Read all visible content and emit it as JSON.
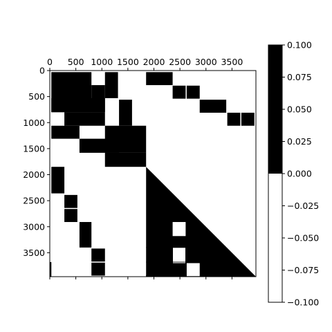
{
  "chart_data": {
    "type": "heatmap",
    "title": "",
    "xlabel": "",
    "ylabel": "",
    "xlim": [
      0,
      3960
    ],
    "ylim": [
      3960,
      0
    ],
    "x_axis_position": "top",
    "grid": false,
    "x_ticks": [
      0,
      500,
      1000,
      1500,
      2000,
      2500,
      3000,
      3500
    ],
    "y_ticks": [
      0,
      500,
      1000,
      1500,
      2000,
      2500,
      3000,
      3500
    ],
    "x_tick_labels": [
      "0",
      "500",
      "1000",
      "1500",
      "2000",
      "2500",
      "3000",
      "3500"
    ],
    "y_tick_labels": [
      "0",
      "500",
      "1000",
      "1500",
      "2000",
      "2500",
      "3000",
      "3500"
    ],
    "color_low": "#ffffff",
    "color_high": "#000000",
    "colorbar": {
      "range": [
        -0.1,
        0.1
      ],
      "threshold": 0.0,
      "ticks": [
        0.1,
        0.075,
        0.05,
        0.025,
        0.0,
        -0.025,
        -0.05,
        -0.075,
        -0.1
      ],
      "tick_labels": [
        "0.100",
        "0.075",
        "0.050",
        "0.025",
        "0.000",
        "−0.025",
        "−0.050",
        "−0.075",
        "−0.100"
      ]
    },
    "nonzero_blocks": [
      {
        "x": [
          30,
          800
        ],
        "y": [
          30,
          800
        ]
      },
      {
        "x": [
          1060,
          1310
        ],
        "y": [
          30,
          530
        ]
      },
      {
        "x": [
          1850,
          2360
        ],
        "y": [
          30,
          280
        ]
      },
      {
        "x": [
          800,
          1060
        ],
        "y": [
          280,
          800
        ]
      },
      {
        "x": [
          30,
          1060
        ],
        "y": [
          530,
          800
        ]
      },
      {
        "x": [
          2360,
          2610
        ],
        "y": [
          290,
          540
        ]
      },
      {
        "x": [
          2630,
          2880
        ],
        "y": [
          290,
          540
        ]
      },
      {
        "x": [
          280,
          1060
        ],
        "y": [
          800,
          1060
        ]
      },
      {
        "x": [
          1330,
          1580
        ],
        "y": [
          560,
          1060
        ]
      },
      {
        "x": [
          2880,
          3390
        ],
        "y": [
          560,
          810
        ]
      },
      {
        "x": [
          3410,
          3660
        ],
        "y": [
          810,
          1060
        ]
      },
      {
        "x": [
          3680,
          3930
        ],
        "y": [
          810,
          1060
        ]
      },
      {
        "x": [
          30,
          570
        ],
        "y": [
          1060,
          1310
        ]
      },
      {
        "x": [
          1060,
          1850
        ],
        "y": [
          1060,
          1580
        ]
      },
      {
        "x": [
          570,
          1330
        ],
        "y": [
          1310,
          1580
        ]
      },
      {
        "x": [
          1060,
          1850
        ],
        "y": [
          1580,
          1850
        ]
      },
      {
        "x": [
          30,
          280
        ],
        "y": [
          1850,
          2360
        ]
      },
      {
        "x": [
          280,
          530
        ],
        "y": [
          2390,
          2640
        ]
      },
      {
        "x": [
          280,
          530
        ],
        "y": [
          2660,
          2910
        ]
      },
      {
        "x": [
          570,
          800
        ],
        "y": [
          2910,
          3400
        ]
      },
      {
        "x": [
          800,
          1060
        ],
        "y": [
          3420,
          3670
        ]
      },
      {
        "x": [
          800,
          1060
        ],
        "y": [
          3690,
          3940
        ]
      },
      {
        "x": [
          0,
          30
        ],
        "y": [
          3680,
          3960
        ]
      },
      {
        "x": [
          1850,
          3930
        ],
        "y": [
          3930,
          3960
        ]
      }
    ],
    "lower_triangle_from": 1850,
    "white_gaps_in_triangle": [
      {
        "x": [
          2360,
          2610
        ],
        "y": [
          2910,
          3180
        ]
      },
      {
        "x": [
          2360,
          2610
        ],
        "y": [
          3400,
          3700
        ]
      },
      {
        "x": [
          2630,
          2880
        ],
        "y": [
          3700,
          3950
        ]
      }
    ]
  }
}
